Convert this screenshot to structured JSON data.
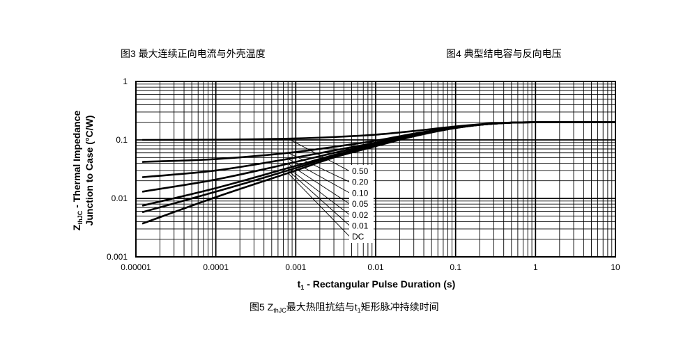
{
  "headings": {
    "fig3": "图3 最大连续正向电流与外壳温度",
    "fig4": "图4 典型结电容与反向电压"
  },
  "caption": {
    "prefix": "图5 Z",
    "sub1": "thJC",
    "mid": "最大热阻抗结与t",
    "sub2": "1",
    "suffix": "矩形脉冲持续时间"
  },
  "chart_data": {
    "type": "line",
    "xscale": "log",
    "yscale": "log",
    "xlim": [
      1e-05,
      10
    ],
    "ylim": [
      0.001,
      1
    ],
    "grid": true,
    "line_color": "#000000",
    "x_ticks": [
      "0.00001",
      "0.0001",
      "0.001",
      "0.01",
      "0.1",
      "1",
      "10"
    ],
    "y_ticks": [
      "1",
      "0.1",
      "0.01",
      "0.001"
    ],
    "xlabel": {
      "symbol": "t",
      "subscript": "1",
      "text": " - Rectangular Pulse Duration (s)"
    },
    "ylabel": {
      "symbol": "Z",
      "subscript": "thJC",
      "text": " - Thermal Impedance",
      "line2": "Junction to Case (°C/W)"
    },
    "x": [
      1.2e-05,
      0.0001,
      0.001,
      0.003,
      0.01,
      0.03,
      0.1,
      0.3,
      1,
      10
    ],
    "series": [
      {
        "name": "0.50",
        "values": [
          0.1,
          0.101,
          0.106,
          0.112,
          0.123,
          0.142,
          0.17,
          0.192,
          0.2,
          0.2
        ]
      },
      {
        "name": "0.20",
        "values": [
          0.042,
          0.047,
          0.062,
          0.076,
          0.097,
          0.128,
          0.165,
          0.19,
          0.2,
          0.2
        ]
      },
      {
        "name": "0.10",
        "values": [
          0.023,
          0.03,
          0.05,
          0.066,
          0.09,
          0.123,
          0.163,
          0.19,
          0.2,
          0.2
        ]
      },
      {
        "name": "0.05",
        "values": [
          0.013,
          0.021,
          0.042,
          0.06,
          0.086,
          0.12,
          0.162,
          0.19,
          0.2,
          0.2
        ]
      },
      {
        "name": "0.02",
        "values": [
          0.0075,
          0.015,
          0.036,
          0.055,
          0.082,
          0.118,
          0.161,
          0.19,
          0.2,
          0.2
        ]
      },
      {
        "name": "0.01",
        "values": [
          0.0058,
          0.013,
          0.033,
          0.053,
          0.08,
          0.117,
          0.16,
          0.19,
          0.2,
          0.2
        ]
      },
      {
        "name": "DC",
        "values": [
          0.0037,
          0.0105,
          0.03,
          0.05,
          0.078,
          0.115,
          0.16,
          0.19,
          0.2,
          0.2
        ]
      }
    ]
  }
}
